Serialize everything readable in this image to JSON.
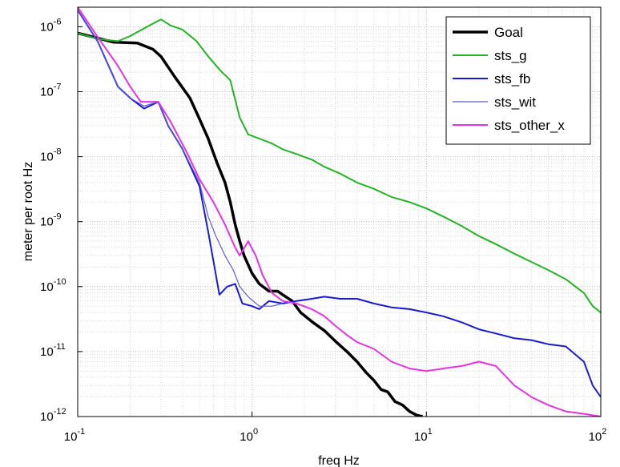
{
  "chart_data": {
    "type": "line",
    "xlabel": "freq Hz",
    "ylabel": "meter per root Hz",
    "xscale": "log",
    "yscale": "log",
    "xlim": [
      0.1,
      100
    ],
    "ylim": [
      1e-12,
      2e-06
    ],
    "x_ticks": [
      {
        "value": 0.1,
        "base": "10",
        "exp": "-1"
      },
      {
        "value": 1,
        "base": "10",
        "exp": "0"
      },
      {
        "value": 10,
        "base": "10",
        "exp": "1"
      },
      {
        "value": 100,
        "base": "10",
        "exp": "2"
      }
    ],
    "y_ticks": [
      {
        "value": 1e-12,
        "base": "10",
        "exp": "-12"
      },
      {
        "value": 1e-11,
        "base": "10",
        "exp": "-11"
      },
      {
        "value": 1e-10,
        "base": "10",
        "exp": "-10"
      },
      {
        "value": 1e-09,
        "base": "10",
        "exp": "-9"
      },
      {
        "value": 1e-08,
        "base": "10",
        "exp": "-8"
      },
      {
        "value": 1e-07,
        "base": "10",
        "exp": "-7"
      },
      {
        "value": 1e-06,
        "base": "10",
        "exp": "-6"
      }
    ],
    "grid": true,
    "legend_position": "top-right",
    "series": [
      {
        "name": "Goal",
        "color": "#000000",
        "width": 3.5,
        "points": [
          [
            0.1,
            8e-07
          ],
          [
            0.16,
            5.8e-07
          ],
          [
            0.22,
            5.6e-07
          ],
          [
            0.27,
            4.5e-07
          ],
          [
            0.3,
            3.5e-07
          ],
          [
            0.36,
            1.7e-07
          ],
          [
            0.44,
            8e-08
          ],
          [
            0.5,
            3.8e-08
          ],
          [
            0.56,
            1.9e-08
          ],
          [
            0.63,
            8e-09
          ],
          [
            0.7,
            4e-09
          ],
          [
            0.75,
            2e-09
          ],
          [
            0.8,
            9e-10
          ],
          [
            0.85,
            5e-10
          ],
          [
            0.9,
            3e-10
          ],
          [
            1.0,
            1.6e-10
          ],
          [
            1.1,
            1.1e-10
          ],
          [
            1.25,
            8.5e-11
          ],
          [
            1.4,
            8.5e-11
          ],
          [
            1.5,
            7.5e-11
          ],
          [
            1.7,
            6e-11
          ],
          [
            1.9,
            4e-11
          ],
          [
            2.2,
            2.9e-11
          ],
          [
            2.6,
            2.1e-11
          ],
          [
            3.0,
            1.45e-11
          ],
          [
            3.5,
            1e-11
          ],
          [
            4.0,
            7e-12
          ],
          [
            4.5,
            4.8e-12
          ],
          [
            5.0,
            3.6e-12
          ],
          [
            5.5,
            2.6e-12
          ],
          [
            6.0,
            2.4e-12
          ],
          [
            6.6,
            1.7e-12
          ],
          [
            7.3,
            1.5e-12
          ],
          [
            8.0,
            1.2e-12
          ],
          [
            8.8,
            1.05e-12
          ],
          [
            9.5,
            1e-12
          ]
        ]
      },
      {
        "name": "sts_g",
        "color": "#22b422",
        "width": 2,
        "points": [
          [
            0.1,
            8e-07
          ],
          [
            0.13,
            6.5e-07
          ],
          [
            0.17,
            6e-07
          ],
          [
            0.2,
            7.2e-07
          ],
          [
            0.25,
            1e-06
          ],
          [
            0.3,
            1.3e-06
          ],
          [
            0.34,
            1.05e-06
          ],
          [
            0.4,
            9e-07
          ],
          [
            0.48,
            6e-07
          ],
          [
            0.56,
            3.5e-07
          ],
          [
            0.65,
            2.2e-07
          ],
          [
            0.75,
            1.5e-07
          ],
          [
            0.85,
            4e-08
          ],
          [
            0.95,
            2.2e-08
          ],
          [
            1.1,
            1.9e-08
          ],
          [
            1.3,
            1.6e-08
          ],
          [
            1.5,
            1.3e-08
          ],
          [
            1.8,
            1.1e-08
          ],
          [
            2.2,
            9e-09
          ],
          [
            2.6,
            7e-09
          ],
          [
            3.2,
            5.5e-09
          ],
          [
            4.0,
            4e-09
          ],
          [
            5.0,
            3.2e-09
          ],
          [
            6.3,
            2.4e-09
          ],
          [
            8.0,
            2e-09
          ],
          [
            10,
            1.6e-09
          ],
          [
            12.5,
            1.2e-09
          ],
          [
            16,
            8.5e-10
          ],
          [
            20,
            6e-10
          ],
          [
            25,
            4.5e-10
          ],
          [
            32,
            3.2e-10
          ],
          [
            40,
            2.4e-10
          ],
          [
            50,
            1.8e-10
          ],
          [
            63,
            1.3e-10
          ],
          [
            80,
            8e-11
          ],
          [
            90,
            5e-11
          ],
          [
            100,
            4e-11
          ]
        ]
      },
      {
        "name": "sts_fb",
        "color": "#1a1ad2",
        "width": 2,
        "points": [
          [
            0.1,
            1.8e-06
          ],
          [
            0.13,
            6e-07
          ],
          [
            0.17,
            1.2e-07
          ],
          [
            0.2,
            8e-08
          ],
          [
            0.24,
            5.5e-08
          ],
          [
            0.29,
            7e-08
          ],
          [
            0.33,
            3e-08
          ],
          [
            0.4,
            1.3e-08
          ],
          [
            0.5,
            3.5e-09
          ],
          [
            0.56,
            7e-10
          ],
          [
            0.6,
            2.5e-10
          ],
          [
            0.65,
            7.5e-11
          ],
          [
            0.72,
            1e-10
          ],
          [
            0.8,
            1.1e-10
          ],
          [
            0.88,
            5.5e-11
          ],
          [
            1.0,
            5e-11
          ],
          [
            1.1,
            4.5e-11
          ],
          [
            1.25,
            6e-11
          ],
          [
            1.5,
            5.5e-11
          ],
          [
            1.8,
            6e-11
          ],
          [
            2.2,
            6.5e-11
          ],
          [
            2.6,
            7e-11
          ],
          [
            3.2,
            6.5e-11
          ],
          [
            4.0,
            6.5e-11
          ],
          [
            5.0,
            5.5e-11
          ],
          [
            6.3,
            4.8e-11
          ],
          [
            8.0,
            4.5e-11
          ],
          [
            10,
            4e-11
          ],
          [
            12.5,
            3.5e-11
          ],
          [
            16,
            2.8e-11
          ],
          [
            20,
            2.2e-11
          ],
          [
            25,
            1.9e-11
          ],
          [
            32,
            1.6e-11
          ],
          [
            40,
            1.5e-11
          ],
          [
            50,
            1.3e-11
          ],
          [
            63,
            1.2e-11
          ],
          [
            80,
            7e-12
          ],
          [
            90,
            3e-12
          ],
          [
            100,
            2e-12
          ]
        ]
      },
      {
        "name": "sts_wit",
        "color": "#5a5adc",
        "width": 1.2,
        "points": [
          [
            0.1,
            1.8e-06
          ],
          [
            0.13,
            6e-07
          ],
          [
            0.17,
            1.2e-07
          ],
          [
            0.2,
            8e-08
          ],
          [
            0.24,
            6e-08
          ],
          [
            0.29,
            7e-08
          ],
          [
            0.33,
            3e-08
          ],
          [
            0.4,
            1.3e-08
          ],
          [
            0.5,
            4e-09
          ],
          [
            0.56,
            1.2e-09
          ],
          [
            0.62,
            6e-10
          ],
          [
            0.7,
            3e-10
          ],
          [
            0.78,
            1.8e-10
          ],
          [
            0.85,
            1e-10
          ],
          [
            0.95,
            7e-11
          ],
          [
            1.1,
            5e-11
          ],
          [
            1.3,
            5e-11
          ],
          [
            1.5,
            5.5e-11
          ]
        ]
      },
      {
        "name": "sts_other_x",
        "color": "#e632e6",
        "width": 2,
        "points": [
          [
            0.1,
            2e-06
          ],
          [
            0.13,
            7e-07
          ],
          [
            0.17,
            2.5e-07
          ],
          [
            0.2,
            1.2e-07
          ],
          [
            0.23,
            7e-08
          ],
          [
            0.29,
            7e-08
          ],
          [
            0.34,
            3.5e-08
          ],
          [
            0.42,
            1.2e-08
          ],
          [
            0.5,
            4.5e-09
          ],
          [
            0.6,
            2e-09
          ],
          [
            0.7,
            9e-10
          ],
          [
            0.8,
            4e-10
          ],
          [
            0.85,
            3e-10
          ],
          [
            0.95,
            5e-10
          ],
          [
            1.05,
            3e-10
          ],
          [
            1.15,
            1.5e-10
          ],
          [
            1.3,
            8e-11
          ],
          [
            1.5,
            6e-11
          ],
          [
            1.8,
            5.5e-11
          ],
          [
            2.2,
            4.5e-11
          ],
          [
            2.6,
            3.5e-11
          ],
          [
            3.0,
            2.5e-11
          ],
          [
            3.5,
            1.8e-11
          ],
          [
            4.0,
            1.4e-11
          ],
          [
            5.0,
            1.1e-11
          ],
          [
            6.3,
            7e-12
          ],
          [
            8.0,
            5.5e-12
          ],
          [
            10,
            5e-12
          ],
          [
            12.5,
            5.5e-12
          ],
          [
            16,
            6e-12
          ],
          [
            20,
            7e-12
          ],
          [
            25,
            6e-12
          ],
          [
            32,
            3e-12
          ],
          [
            40,
            2e-12
          ],
          [
            50,
            1.5e-12
          ],
          [
            63,
            1.2e-12
          ],
          [
            80,
            1.1e-12
          ],
          [
            100,
            1e-12
          ]
        ]
      }
    ]
  }
}
